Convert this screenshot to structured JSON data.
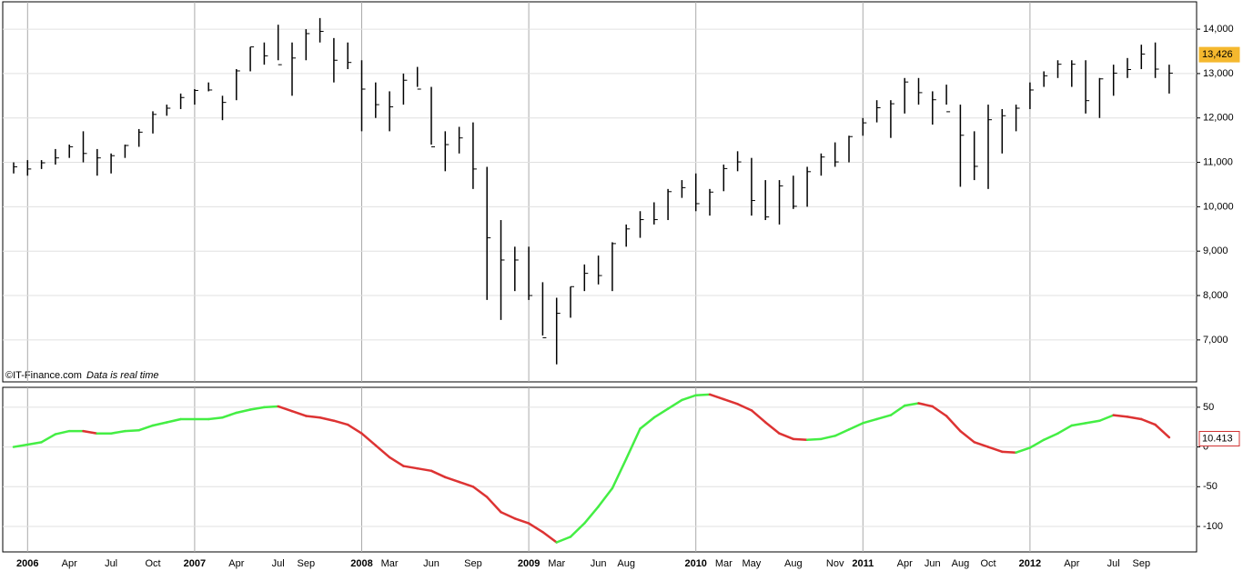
{
  "chart_data": [
    {
      "type": "ohlc",
      "source": "©IT-Finance.com",
      "note": "Data is real time",
      "series": [
        {
          "color": "#000000",
          "low": [
            10750,
            10700,
            10850,
            10950,
            11100,
            11000,
            10700,
            10750,
            11100,
            11350,
            11650,
            12050,
            12200,
            12300,
            12600,
            11950,
            12400,
            13050,
            13200,
            13300,
            12500,
            13300,
            13700,
            12800,
            13100,
            11700,
            12000,
            11700,
            12300,
            12700,
            11400,
            10800,
            11200,
            10400,
            7900,
            7450,
            8100,
            7900,
            7100,
            6450,
            7500,
            8100,
            8250,
            8100,
            9100,
            9300,
            9600,
            9700,
            10200,
            9900,
            9800,
            10350,
            10800,
            9800,
            9700,
            9600,
            9950,
            10000,
            10700,
            10900,
            11000,
            11600,
            11900,
            11550,
            12100,
            12300,
            11850,
            12300,
            10450,
            10600,
            10400,
            11200,
            11700,
            12200,
            12700,
            12900,
            12700,
            12100,
            12000,
            12500,
            12900,
            13100,
            12900,
            12550
          ],
          "high": [
            11000,
            11050,
            11050,
            11300,
            11400,
            11700,
            11300,
            11200,
            11400,
            11750,
            12150,
            12300,
            12550,
            12650,
            12800,
            12500,
            13100,
            13600,
            13700,
            14100,
            13700,
            14000,
            14250,
            13800,
            13700,
            13300,
            12800,
            12600,
            13000,
            13150,
            12700,
            11700,
            11800,
            11900,
            10900,
            9700,
            9100,
            9100,
            8300,
            7950,
            8200,
            8700,
            8900,
            9200,
            9600,
            9900,
            10100,
            10400,
            10600,
            10750,
            10400,
            10950,
            11250,
            11100,
            10600,
            10600,
            10700,
            10900,
            11200,
            11450,
            11600,
            12000,
            12400,
            12400,
            12900,
            12900,
            12600,
            12750,
            12300,
            11700,
            12300,
            12200,
            12300,
            12800,
            13050,
            13300,
            13300,
            13300,
            12900,
            13200,
            13350,
            13650,
            13700,
            13200
          ],
          "close": [
            10900,
            10850,
            10990,
            11100,
            11350,
            11200,
            11100,
            11150,
            11380,
            11680,
            12080,
            12220,
            12460,
            12620,
            12630,
            12350,
            13060,
            13600,
            13400,
            13200,
            13350,
            13900,
            13950,
            13300,
            13250,
            12650,
            12300,
            12250,
            12850,
            12650,
            11350,
            11400,
            11550,
            10850,
            9300,
            8800,
            8800,
            8000,
            7050,
            7600,
            8200,
            8500,
            8450,
            9170,
            9500,
            9710,
            9710,
            10340,
            10430,
            10070,
            10330,
            10860,
            11010,
            10140,
            9770,
            10470,
            10010,
            10790,
            11120,
            11010,
            11580,
            11890,
            12230,
            12320,
            12810,
            12570,
            12410,
            12140,
            11610,
            10910,
            11960,
            12050,
            12220,
            12630,
            12950,
            13210,
            13210,
            12390,
            12880,
            13010,
            13090,
            13440,
            13100,
            13010
          ]
        }
      ],
      "last_value": 13426,
      "last_value_label": "13,426",
      "last_value_color": "#f5b82e",
      "ylim": [
        6055,
        14616
      ],
      "yticks": [
        {
          "value": 7000,
          "label": "7,000"
        },
        {
          "value": 8000,
          "label": "8,000"
        },
        {
          "value": 9000,
          "label": "9,000"
        },
        {
          "value": 10000,
          "label": "10,000"
        },
        {
          "value": 11000,
          "label": "11,000"
        },
        {
          "value": 12000,
          "label": "12,000"
        },
        {
          "value": 13000,
          "label": "13,000"
        },
        {
          "value": 14000,
          "label": "14,000"
        }
      ],
      "grid": true
    },
    {
      "type": "line",
      "categories": [
        null,
        "2006",
        null,
        null,
        "Apr",
        null,
        null,
        "Jul",
        null,
        null,
        "Oct",
        null,
        null,
        "2007",
        null,
        null,
        "Apr",
        null,
        null,
        "Jul",
        null,
        "Sep",
        null,
        null,
        null,
        "2008",
        null,
        "Mar",
        null,
        null,
        "Jun",
        null,
        null,
        "Sep",
        null,
        null,
        null,
        "2009",
        null,
        "Mar",
        null,
        null,
        "Jun",
        null,
        "Aug",
        null,
        null,
        null,
        null,
        "2010",
        null,
        "Mar",
        null,
        "May",
        null,
        null,
        "Aug",
        null,
        null,
        "Nov",
        null,
        "2011",
        null,
        null,
        "Apr",
        null,
        "Jun",
        null,
        "Aug",
        null,
        "Oct",
        null,
        null,
        "2012",
        null,
        null,
        "Apr",
        null,
        null,
        "Jul",
        null,
        "Sep",
        null,
        null
      ],
      "values": [
        0,
        3,
        6,
        16,
        20,
        20,
        17,
        17,
        20,
        21,
        27,
        31,
        35,
        35,
        35,
        37,
        43,
        47,
        50,
        51,
        45,
        39,
        37,
        33,
        28,
        17,
        2,
        -13,
        -24,
        -27,
        -30,
        -38,
        -44,
        -50,
        -63,
        -82,
        -90,
        -96,
        -107,
        -120,
        -113,
        -96,
        -75,
        -52,
        -15,
        23,
        37,
        48,
        59,
        65,
        66,
        60,
        54,
        46,
        31,
        17,
        10,
        9,
        10,
        14,
        22,
        30,
        35,
        40,
        52,
        55,
        51,
        39,
        20,
        6,
        0,
        -6,
        -7,
        -1,
        9,
        17,
        27,
        30,
        33,
        40,
        38,
        35,
        28,
        12
      ],
      "colors": {
        "up": "#44ee44",
        "down": "#dd3333"
      },
      "last_value": 10.413,
      "last_value_color": "#d03030",
      "ylim": [
        -132,
        75
      ],
      "yticks": [
        -100,
        -50,
        0,
        50
      ],
      "grid": true
    }
  ]
}
